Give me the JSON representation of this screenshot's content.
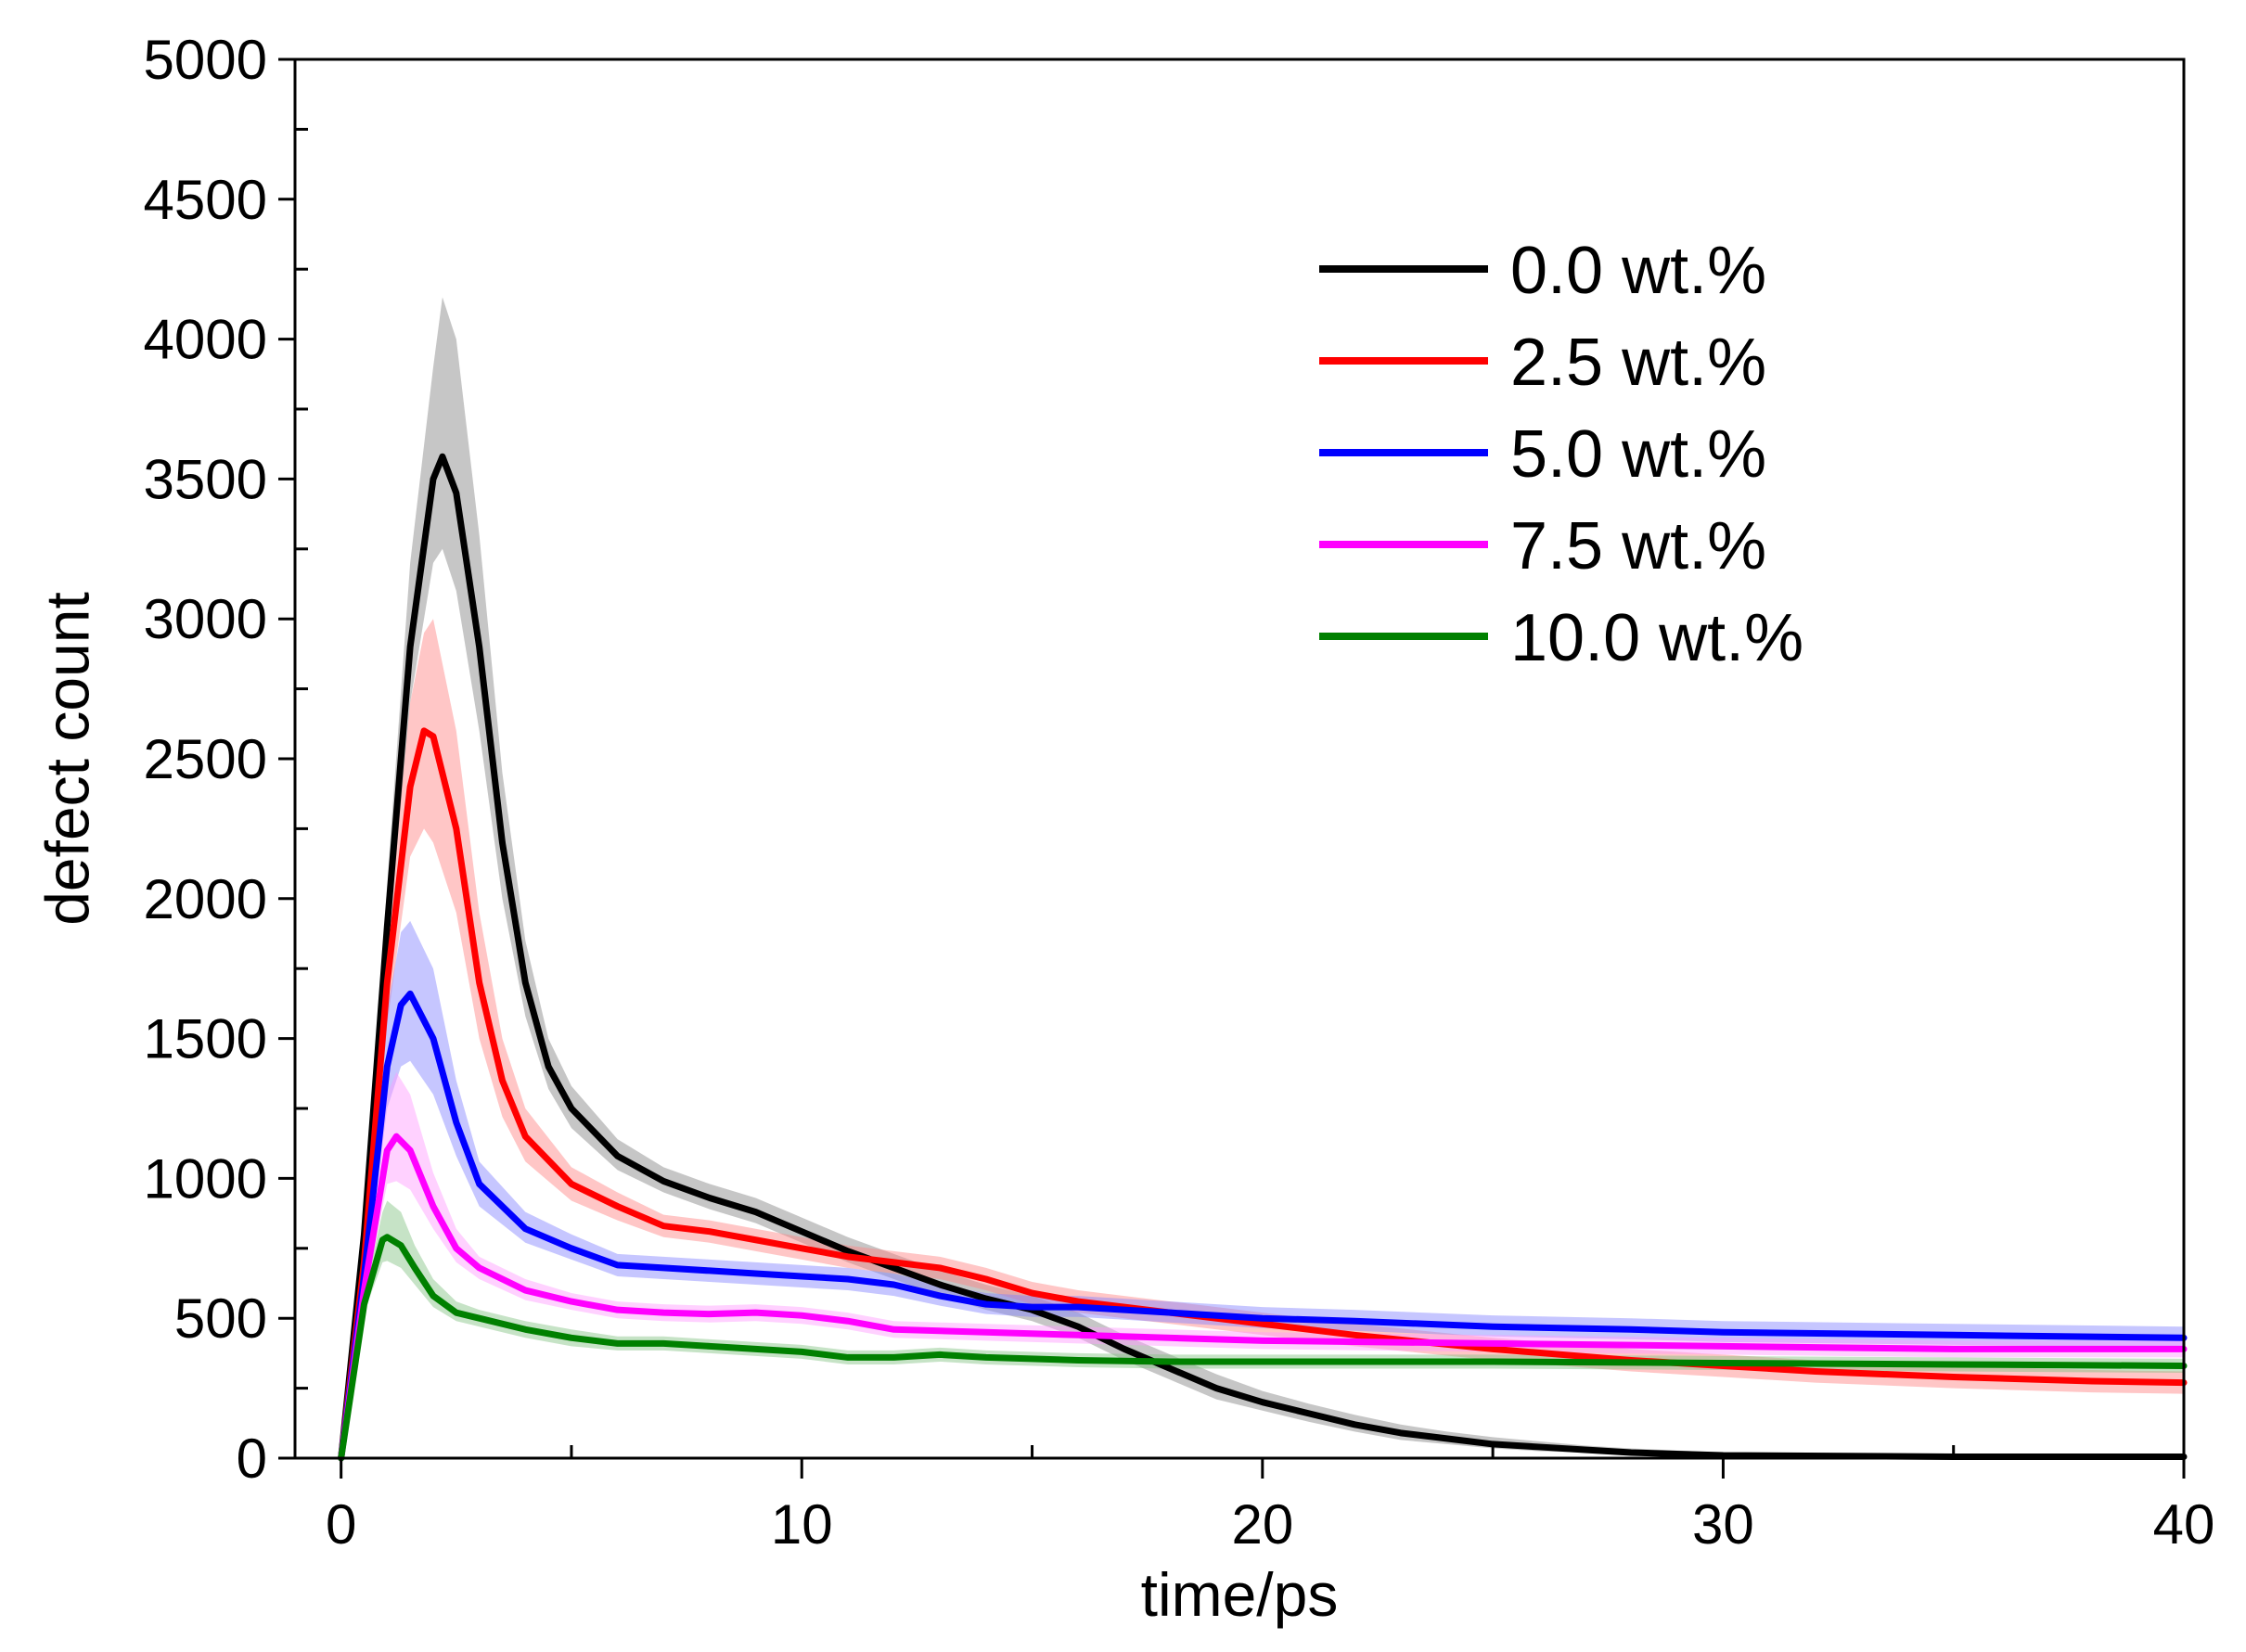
{
  "chart_data": {
    "type": "line",
    "title": "",
    "xlabel": "time/ps",
    "ylabel": "defect count",
    "xlim": [
      -1,
      40
    ],
    "ylim": [
      0,
      5000
    ],
    "x_ticks": [
      0,
      10,
      20,
      30,
      40
    ],
    "x_tick_labels": [
      "0",
      "10",
      "20",
      "30",
      "40"
    ],
    "x_minor_ticks": [
      5,
      15,
      25,
      35
    ],
    "y_ticks": [
      0,
      500,
      1000,
      1500,
      2000,
      2500,
      3000,
      3500,
      4000,
      4500,
      5000
    ],
    "y_tick_labels": [
      "0",
      "500",
      "1000",
      "1500",
      "2000",
      "2500",
      "3000",
      "3500",
      "4000",
      "4500",
      "5000"
    ],
    "y_minor_ticks": [
      250,
      750,
      1250,
      1750,
      2250,
      2750,
      3250,
      3750,
      4250,
      4750
    ],
    "grid": false,
    "legend_position": "top-right",
    "series": [
      {
        "name": "0.0 wt.%",
        "color": "#000000",
        "band_color": "#808080",
        "x": [
          0,
          0.5,
          1.0,
          1.5,
          2.0,
          2.2,
          2.5,
          3.0,
          3.5,
          4.0,
          4.5,
          5.0,
          6.0,
          7.0,
          8.0,
          9.0,
          10.0,
          11.0,
          12.0,
          13.0,
          14.0,
          15.0,
          16.0,
          17.0,
          18.0,
          19.0,
          20.0,
          21.0,
          22.0,
          23.0,
          24.0,
          25.0,
          26.0,
          27.0,
          28.0,
          30.0,
          35.0,
          40.0
        ],
        "y": [
          0,
          800,
          1900,
          2900,
          3500,
          3580,
          3450,
          2900,
          2200,
          1700,
          1400,
          1250,
          1080,
          990,
          930,
          880,
          810,
          740,
          680,
          620,
          570,
          530,
          470,
          390,
          320,
          250,
          200,
          160,
          120,
          90,
          70,
          50,
          40,
          30,
          20,
          10,
          5,
          5
        ],
        "y_low": [
          0,
          750,
          1800,
          2700,
          3200,
          3250,
          3100,
          2600,
          2000,
          1580,
          1320,
          1180,
          1030,
          950,
          890,
          840,
          770,
          700,
          640,
          580,
          530,
          490,
          430,
          350,
          280,
          210,
          170,
          130,
          95,
          65,
          50,
          35,
          25,
          20,
          10,
          5,
          0,
          0
        ],
        "y_high": [
          0,
          850,
          2050,
          3200,
          3900,
          4150,
          4000,
          3300,
          2450,
          1850,
          1500,
          1330,
          1140,
          1040,
          980,
          930,
          860,
          790,
          730,
          670,
          620,
          580,
          520,
          440,
          370,
          300,
          240,
          195,
          155,
          120,
          95,
          75,
          60,
          45,
          35,
          20,
          15,
          15
        ]
      },
      {
        "name": "2.5 wt.%",
        "color": "#ff0000",
        "band_color": "#ff8080",
        "x": [
          0,
          0.5,
          1.0,
          1.5,
          1.8,
          2.0,
          2.5,
          3.0,
          3.5,
          4.0,
          5.0,
          6.0,
          7.0,
          8.0,
          9.0,
          10.0,
          11.0,
          12.0,
          13.0,
          14.0,
          15.0,
          16.0,
          17.0,
          18.0,
          20.0,
          22.0,
          25.0,
          28.0,
          30.0,
          32.0,
          35.0,
          38.0,
          40.0
        ],
        "y": [
          0,
          700,
          1700,
          2400,
          2600,
          2580,
          2250,
          1700,
          1350,
          1150,
          980,
          900,
          830,
          810,
          780,
          750,
          720,
          700,
          680,
          640,
          590,
          560,
          540,
          520,
          480,
          440,
          390,
          350,
          330,
          310,
          290,
          275,
          270
        ],
        "y_low": [
          0,
          650,
          1550,
          2150,
          2250,
          2200,
          1950,
          1500,
          1220,
          1060,
          920,
          850,
          790,
          770,
          740,
          710,
          680,
          660,
          640,
          600,
          550,
          520,
          500,
          480,
          440,
          400,
          350,
          310,
          290,
          270,
          250,
          235,
          230
        ],
        "y_high": [
          0,
          750,
          1850,
          2700,
          2950,
          3000,
          2600,
          1950,
          1500,
          1250,
          1040,
          950,
          870,
          850,
          820,
          790,
          760,
          740,
          720,
          680,
          630,
          600,
          580,
          560,
          520,
          480,
          430,
          390,
          370,
          350,
          330,
          315,
          310
        ]
      },
      {
        "name": "5.0 wt.%",
        "color": "#0000ff",
        "band_color": "#8080ff",
        "x": [
          0,
          0.5,
          1.0,
          1.3,
          1.5,
          2.0,
          2.5,
          3.0,
          4.0,
          5.0,
          6.0,
          7.0,
          8.0,
          9.0,
          10.0,
          11.0,
          12.0,
          13.0,
          14.0,
          15.0,
          16.0,
          18.0,
          20.0,
          22.0,
          25.0,
          28.0,
          30.0,
          35.0,
          40.0
        ],
        "y": [
          0,
          650,
          1400,
          1620,
          1660,
          1500,
          1200,
          980,
          820,
          750,
          690,
          680,
          670,
          660,
          650,
          640,
          620,
          580,
          550,
          540,
          540,
          520,
          500,
          490,
          470,
          460,
          450,
          440,
          430
        ],
        "y_low": [
          0,
          600,
          1250,
          1400,
          1420,
          1300,
          1080,
          900,
          770,
          710,
          650,
          640,
          630,
          620,
          610,
          600,
          580,
          545,
          515,
          505,
          505,
          485,
          465,
          455,
          435,
          425,
          415,
          405,
          395
        ],
        "y_high": [
          0,
          700,
          1600,
          1880,
          1920,
          1750,
          1350,
          1060,
          880,
          800,
          730,
          720,
          710,
          700,
          690,
          680,
          660,
          620,
          590,
          580,
          580,
          560,
          540,
          530,
          510,
          500,
          490,
          480,
          470
        ]
      },
      {
        "name": "7.5 wt.%",
        "color": "#ff00ff",
        "band_color": "#ff99ff",
        "x": [
          0,
          0.5,
          1.0,
          1.2,
          1.5,
          2.0,
          2.5,
          3.0,
          4.0,
          5.0,
          6.0,
          7.0,
          8.0,
          9.0,
          10.0,
          11.0,
          12.0,
          14.0,
          16.0,
          18.0,
          20.0,
          25.0,
          30.0,
          35.0,
          40.0
        ],
        "y": [
          0,
          600,
          1100,
          1150,
          1100,
          900,
          750,
          680,
          600,
          560,
          530,
          520,
          515,
          520,
          510,
          490,
          460,
          450,
          440,
          430,
          420,
          410,
          400,
          390,
          390
        ],
        "y_low": [
          0,
          560,
          980,
          990,
          960,
          820,
          700,
          640,
          565,
          530,
          500,
          490,
          485,
          490,
          480,
          460,
          430,
          420,
          410,
          400,
          390,
          380,
          370,
          360,
          360
        ],
        "y_high": [
          0,
          640,
          1300,
          1380,
          1300,
          1020,
          820,
          720,
          640,
          590,
          560,
          550,
          545,
          550,
          540,
          520,
          490,
          480,
          470,
          460,
          450,
          440,
          430,
          420,
          420
        ]
      },
      {
        "name": "10.0 wt.%",
        "color": "#008000",
        "band_color": "#80c080",
        "x": [
          0,
          0.5,
          0.9,
          1.0,
          1.3,
          1.6,
          2.0,
          2.5,
          3.0,
          4.0,
          5.0,
          6.0,
          7.0,
          8.0,
          9.0,
          10.0,
          11.0,
          12.0,
          13.0,
          14.0,
          16.0,
          18.0,
          20.0,
          25.0,
          30.0,
          35.0,
          40.0
        ],
        "y": [
          0,
          550,
          780,
          790,
          760,
          680,
          580,
          520,
          500,
          460,
          430,
          410,
          410,
          400,
          390,
          380,
          360,
          360,
          370,
          360,
          350,
          345,
          345,
          345,
          340,
          335,
          330
        ],
        "y_low": [
          0,
          520,
          700,
          705,
          680,
          620,
          540,
          490,
          470,
          430,
          400,
          385,
          385,
          375,
          365,
          355,
          335,
          335,
          345,
          335,
          325,
          320,
          320,
          320,
          315,
          310,
          305
        ],
        "y_high": [
          0,
          580,
          880,
          920,
          880,
          760,
          640,
          560,
          530,
          490,
          460,
          435,
          435,
          425,
          415,
          405,
          385,
          385,
          395,
          385,
          375,
          370,
          370,
          370,
          365,
          360,
          355
        ]
      }
    ]
  }
}
